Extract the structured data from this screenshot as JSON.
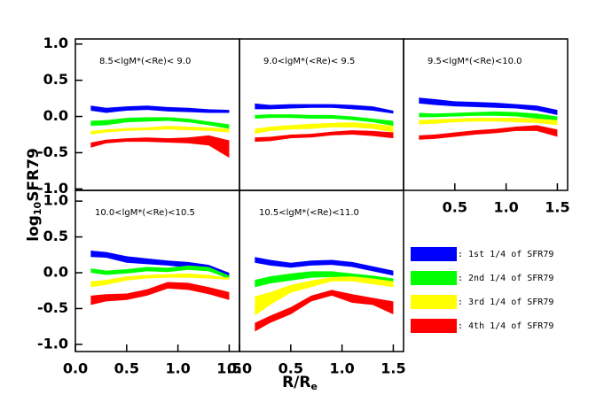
{
  "xlabel": [
    "R/R",
    "e"
  ],
  "ylabel": [
    "log",
    "10",
    "SFR79"
  ],
  "legend": [
    {
      "name": ": 1st 1/4 of SFR79",
      "color": "#0000ff"
    },
    {
      "name": ": 2nd 1/4 of SFR79",
      "color": "#00ff00"
    },
    {
      "name": ": 3rd 1/4 of SFR79",
      "color": "#ffff00"
    },
    {
      "name": ": 4th 1/4 of SFR79",
      "color": "#ff0000"
    }
  ],
  "chart_data": [
    {
      "type": "band",
      "title": "8.5<lgM*(<Re)< 9.0",
      "x": [
        0.15,
        0.3,
        0.5,
        0.7,
        0.9,
        1.1,
        1.3,
        1.5
      ],
      "xlim": [
        0,
        1.6
      ],
      "ylim": [
        -1.02,
        1.07
      ],
      "yticks": [
        {
          "value": 1,
          "label": "1.0"
        },
        0.5,
        {
          "value": 0,
          "label": "0.0"
        },
        -0.5,
        {
          "value": -1,
          "label": "-1.0"
        }
      ],
      "series": [
        {
          "color": "#0000ff",
          "low": [
            0.08,
            0.05,
            0.08,
            0.09,
            0.07,
            0.06,
            0.05,
            0.05
          ],
          "high": [
            0.15,
            0.12,
            0.14,
            0.15,
            0.13,
            0.12,
            0.1,
            0.09
          ]
        },
        {
          "color": "#00ff00",
          "low": [
            -0.13,
            -0.12,
            -0.08,
            -0.07,
            -0.06,
            -0.08,
            -0.12,
            -0.17
          ],
          "high": [
            -0.06,
            -0.05,
            -0.02,
            -0.01,
            -0.01,
            -0.03,
            -0.07,
            -0.11
          ]
        },
        {
          "color": "#ffff00",
          "low": [
            -0.25,
            -0.22,
            -0.2,
            -0.19,
            -0.18,
            -0.19,
            -0.2,
            -0.22
          ],
          "high": [
            -0.2,
            -0.18,
            -0.16,
            -0.15,
            -0.13,
            -0.14,
            -0.15,
            -0.17
          ]
        },
        {
          "color": "#ff0000",
          "low": [
            -0.43,
            -0.37,
            -0.35,
            -0.35,
            -0.36,
            -0.37,
            -0.4,
            -0.57
          ],
          "high": [
            -0.36,
            -0.32,
            -0.3,
            -0.29,
            -0.3,
            -0.29,
            -0.26,
            -0.33
          ]
        }
      ]
    },
    {
      "type": "band",
      "title": "9.0<lgM*(<Re)< 9.5",
      "x": [
        0.15,
        0.3,
        0.5,
        0.7,
        0.9,
        1.1,
        1.3,
        1.5
      ],
      "xlim": [
        0,
        1.6
      ],
      "ylim": [
        -1.02,
        1.07
      ],
      "series": [
        {
          "color": "#0000ff",
          "low": [
            0.1,
            0.1,
            0.11,
            0.12,
            0.12,
            0.1,
            0.08,
            0.04
          ],
          "high": [
            0.18,
            0.16,
            0.17,
            0.17,
            0.17,
            0.16,
            0.14,
            0.08
          ]
        },
        {
          "color": "#00ff00",
          "low": [
            -0.03,
            -0.02,
            -0.02,
            -0.03,
            -0.03,
            -0.05,
            -0.08,
            -0.13
          ],
          "high": [
            0.02,
            0.03,
            0.03,
            0.02,
            0.02,
            0.0,
            -0.03,
            -0.06
          ]
        },
        {
          "color": "#ffff00",
          "low": [
            -0.24,
            -0.2,
            -0.18,
            -0.17,
            -0.15,
            -0.15,
            -0.17,
            -0.22
          ],
          "high": [
            -0.17,
            -0.14,
            -0.12,
            -0.1,
            -0.09,
            -0.08,
            -0.1,
            -0.13
          ]
        },
        {
          "color": "#ff0000",
          "low": [
            -0.35,
            -0.34,
            -0.3,
            -0.29,
            -0.26,
            -0.25,
            -0.27,
            -0.3
          ],
          "high": [
            -0.29,
            -0.28,
            -0.25,
            -0.24,
            -0.21,
            -0.19,
            -0.2,
            -0.22
          ]
        }
      ]
    },
    {
      "type": "band",
      "title": "9.5<lgM*(<Re)<10.0",
      "x": [
        0.15,
        0.3,
        0.5,
        0.7,
        0.9,
        1.1,
        1.3,
        1.5
      ],
      "xlim": [
        0,
        1.6
      ],
      "ylim": [
        -1.02,
        1.07
      ],
      "xticks": [
        0.5,
        {
          "value": 1,
          "label": "1.0"
        },
        1.5
      ],
      "series": [
        {
          "color": "#0000ff",
          "low": [
            0.18,
            0.16,
            0.14,
            0.13,
            0.12,
            0.11,
            0.08,
            0.02
          ],
          "high": [
            0.26,
            0.24,
            0.21,
            0.2,
            0.19,
            0.17,
            0.15,
            0.09
          ]
        },
        {
          "color": "#00ff00",
          "low": [
            -0.01,
            -0.01,
            0.0,
            0.01,
            0.01,
            0.0,
            -0.03,
            -0.06
          ],
          "high": [
            0.05,
            0.04,
            0.05,
            0.06,
            0.07,
            0.06,
            0.04,
            0.0
          ]
        },
        {
          "color": "#ffff00",
          "low": [
            -0.11,
            -0.1,
            -0.08,
            -0.07,
            -0.07,
            -0.08,
            -0.09,
            -0.12
          ],
          "high": [
            -0.05,
            -0.04,
            -0.03,
            -0.02,
            -0.02,
            -0.02,
            -0.03,
            -0.05
          ]
        },
        {
          "color": "#ff0000",
          "low": [
            -0.32,
            -0.31,
            -0.28,
            -0.25,
            -0.23,
            -0.2,
            -0.2,
            -0.28
          ],
          "high": [
            -0.26,
            -0.25,
            -0.22,
            -0.19,
            -0.17,
            -0.14,
            -0.12,
            -0.18
          ]
        }
      ]
    },
    {
      "type": "band",
      "title": "10.0<lgM*(<Re)<10.5",
      "x": [
        0.15,
        0.3,
        0.5,
        0.7,
        0.9,
        1.1,
        1.3,
        1.5
      ],
      "xlim": [
        0,
        1.6
      ],
      "ylim": [
        -1.1,
        1.15
      ],
      "xticks": [
        {
          "value": 0,
          "label": "0.0"
        },
        0.5,
        {
          "value": 1,
          "label": "1.0"
        },
        1.5
      ],
      "yticks": [
        {
          "value": 1,
          "label": "1.0"
        },
        0.5,
        {
          "value": 0,
          "label": "0.0"
        },
        -0.5,
        {
          "value": -1,
          "label": "-1.0"
        }
      ],
      "series": [
        {
          "color": "#0000ff",
          "low": [
            0.22,
            0.21,
            0.14,
            0.12,
            0.1,
            0.07,
            0.03,
            -0.09
          ],
          "high": [
            0.31,
            0.29,
            0.23,
            0.2,
            0.17,
            0.15,
            0.11,
            0.0
          ]
        },
        {
          "color": "#00ff00",
          "low": [
            0.0,
            -0.03,
            -0.01,
            0.02,
            0.01,
            0.04,
            0.02,
            -0.08
          ],
          "high": [
            0.06,
            0.03,
            0.05,
            0.08,
            0.07,
            0.1,
            0.08,
            -0.04
          ]
        },
        {
          "color": "#ffff00",
          "low": [
            -0.2,
            -0.17,
            -0.11,
            -0.08,
            -0.07,
            -0.07,
            -0.08,
            -0.1
          ],
          "high": [
            -0.12,
            -0.1,
            -0.05,
            -0.03,
            -0.02,
            -0.01,
            -0.03,
            -0.07
          ]
        },
        {
          "color": "#ff0000",
          "low": [
            -0.45,
            -0.4,
            -0.38,
            -0.32,
            -0.22,
            -0.24,
            -0.3,
            -0.38
          ],
          "high": [
            -0.32,
            -0.3,
            -0.29,
            -0.23,
            -0.13,
            -0.14,
            -0.2,
            -0.27
          ]
        }
      ]
    },
    {
      "type": "band",
      "title": "10.5<lgM*(<Re)<11.0",
      "x": [
        0.15,
        0.3,
        0.5,
        0.7,
        0.9,
        1.1,
        1.3,
        1.5
      ],
      "xlim": [
        0,
        1.6
      ],
      "ylim": [
        -1.1,
        1.15
      ],
      "xticks": [
        {
          "value": 0,
          "label": "0.0"
        },
        0.5,
        {
          "value": 1,
          "label": "1.0"
        },
        1.5
      ],
      "series": [
        {
          "color": "#0000ff",
          "low": [
            0.14,
            0.1,
            0.07,
            0.1,
            0.11,
            0.08,
            0.02,
            -0.04
          ],
          "high": [
            0.22,
            0.18,
            0.14,
            0.17,
            0.18,
            0.15,
            0.09,
            0.03
          ]
        },
        {
          "color": "#00ff00",
          "low": [
            -0.2,
            -0.15,
            -0.11,
            -0.07,
            -0.06,
            -0.09,
            -0.12,
            -0.2
          ],
          "high": [
            -0.1,
            -0.05,
            -0.01,
            0.02,
            0.02,
            -0.01,
            -0.04,
            -0.08
          ]
        },
        {
          "color": "#ffff00",
          "low": [
            -0.6,
            -0.45,
            -0.28,
            -0.2,
            -0.12,
            -0.12,
            -0.16,
            -0.2
          ],
          "high": [
            -0.33,
            -0.27,
            -0.17,
            -0.11,
            -0.06,
            -0.05,
            -0.08,
            -0.12
          ]
        },
        {
          "color": "#ff0000",
          "low": [
            -0.82,
            -0.7,
            -0.58,
            -0.4,
            -0.32,
            -0.42,
            -0.45,
            -0.58
          ],
          "high": [
            -0.7,
            -0.6,
            -0.48,
            -0.32,
            -0.24,
            -0.3,
            -0.35,
            -0.4
          ]
        }
      ]
    }
  ]
}
